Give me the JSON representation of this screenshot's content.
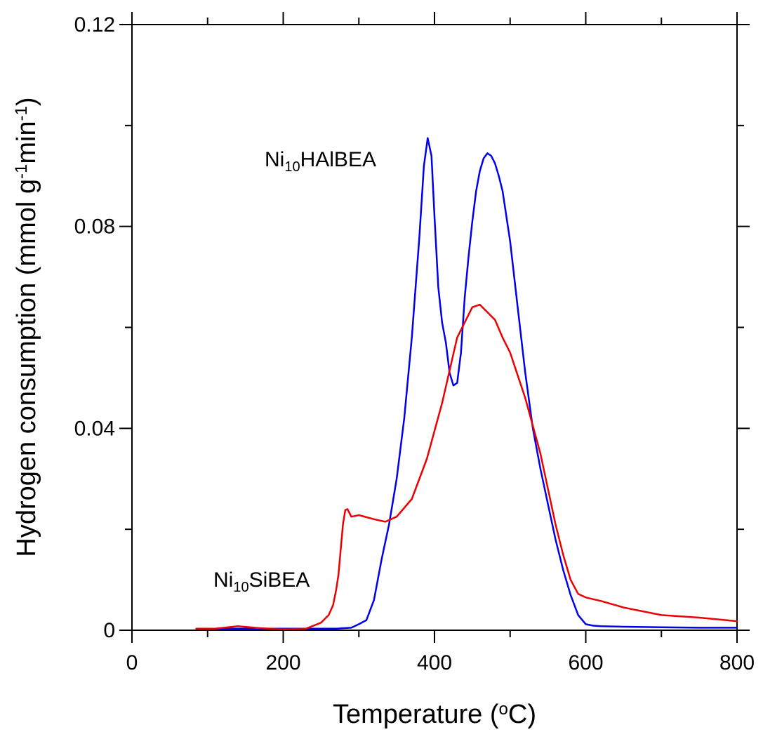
{
  "chart_data": {
    "type": "line",
    "xlabel_main": "Temperature (",
    "xlabel_sup": "o",
    "xlabel_end": "C)",
    "ylabel_main": "Hydrogen consumption (mmol g",
    "ylabel_sup1": "-1",
    "ylabel_mid": "min",
    "ylabel_sup2": "-1",
    "ylabel_end": ")",
    "xlim": [
      0,
      800
    ],
    "ylim": [
      0,
      0.12
    ],
    "x_ticks": [
      0,
      200,
      400,
      600,
      800
    ],
    "x_tick_labels": [
      "0",
      "200",
      "400",
      "600",
      "800"
    ],
    "x_minor_ticks": [
      100,
      300,
      500,
      700
    ],
    "y_ticks": [
      0,
      0.04,
      0.08,
      0.12
    ],
    "y_tick_labels": [
      "0",
      "0.04",
      "0.08",
      "0.12"
    ],
    "y_minor_ticks": [
      0.02,
      0.06,
      0.1
    ],
    "grid": false,
    "series": [
      {
        "name_main": "Ni",
        "name_sub": "10",
        "name_end": "HAlBEA",
        "color": "#0000ee",
        "x": [
          100,
          200,
          270,
          290,
          300,
          310,
          320,
          330,
          340,
          350,
          360,
          370,
          380,
          386,
          391,
          396,
          400,
          405,
          410,
          415,
          420,
          425,
          430,
          435,
          440,
          445,
          450,
          455,
          460,
          465,
          470,
          475,
          480,
          485,
          490,
          500,
          510,
          520,
          530,
          540,
          550,
          560,
          570,
          580,
          590,
          600,
          610,
          620,
          650,
          700,
          750,
          800
        ],
        "y": [
          0.0003,
          0.0003,
          0.0003,
          0.0005,
          0.0012,
          0.002,
          0.006,
          0.014,
          0.021,
          0.03,
          0.042,
          0.058,
          0.078,
          0.092,
          0.0975,
          0.094,
          0.082,
          0.068,
          0.061,
          0.057,
          0.051,
          0.0485,
          0.049,
          0.055,
          0.066,
          0.074,
          0.081,
          0.087,
          0.091,
          0.0935,
          0.0945,
          0.094,
          0.0925,
          0.09,
          0.087,
          0.077,
          0.064,
          0.051,
          0.04,
          0.032,
          0.025,
          0.018,
          0.012,
          0.007,
          0.003,
          0.0012,
          0.0009,
          0.0008,
          0.0007,
          0.0006,
          0.0005,
          0.0005
        ]
      },
      {
        "name_main": "Ni",
        "name_sub": "10",
        "name_end": "SiBEA",
        "color": "#ee0000",
        "x": [
          85,
          110,
          140,
          170,
          200,
          230,
          250,
          260,
          266,
          270,
          273,
          276,
          279,
          282,
          285,
          290,
          300,
          320,
          335,
          350,
          370,
          390,
          410,
          430,
          450,
          460,
          470,
          480,
          490,
          500,
          520,
          540,
          560,
          570,
          580,
          590,
          600,
          620,
          650,
          700,
          750,
          800
        ],
        "y": [
          0.0003,
          0.0003,
          0.0008,
          0.0004,
          0.0002,
          0.0003,
          0.0015,
          0.003,
          0.005,
          0.008,
          0.011,
          0.016,
          0.021,
          0.0238,
          0.024,
          0.0225,
          0.0228,
          0.022,
          0.0215,
          0.0225,
          0.026,
          0.034,
          0.045,
          0.058,
          0.064,
          0.0645,
          0.063,
          0.0615,
          0.058,
          0.055,
          0.046,
          0.035,
          0.021,
          0.015,
          0.01,
          0.0072,
          0.0065,
          0.0058,
          0.0045,
          0.003,
          0.0025,
          0.0018
        ]
      }
    ]
  }
}
